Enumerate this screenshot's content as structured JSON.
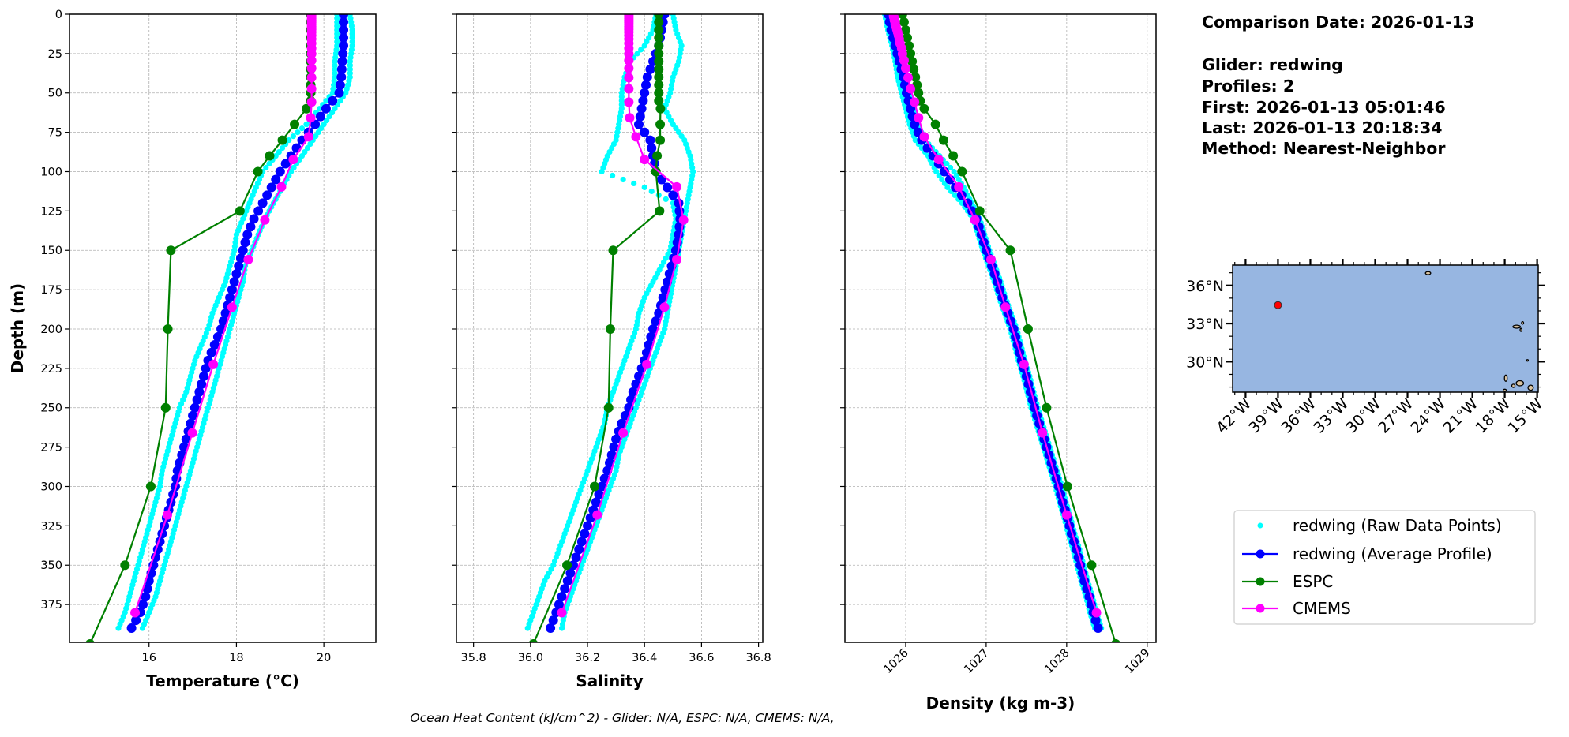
{
  "info": {
    "comparison_date": "Comparison Date: 2026-01-13",
    "glider": "Glider: redwing",
    "profiles": "Profiles: 2",
    "first": "First: 2026-01-13 05:01:46",
    "last": "Last: 2026-01-13 20:18:34",
    "method": "Method: Nearest-Neighbor"
  },
  "footer": "Ocean Heat Content (kJ/cm^2) - Glider: N/A,  ESPC: N/A,  CMEMS: N/A,",
  "legend": {
    "placement": "right",
    "items": [
      {
        "label": "redwing (Raw Data Points)",
        "color": "#00ffff",
        "style": "marker"
      },
      {
        "label": "redwing (Average Profile)",
        "color": "#0000ff",
        "style": "line-marker"
      },
      {
        "label": "ESPC",
        "color": "#008000",
        "style": "line-marker"
      },
      {
        "label": "CMEMS",
        "color": "#ff00ff",
        "style": "line-marker"
      }
    ]
  },
  "map": {
    "lon_range": [
      -43.2,
      -14.9
    ],
    "lat_range": [
      27.6,
      37.6
    ],
    "ocean_color": "#97b6e1",
    "land_color": "#d9c3a0",
    "marker_color": "#ff0000",
    "glider_position": {
      "lon": -39.0,
      "lat": 34.45
    },
    "lon_ticks": [
      {
        "value": -42,
        "label": "42°W"
      },
      {
        "value": -39,
        "label": "39°W"
      },
      {
        "value": -36,
        "label": "36°W"
      },
      {
        "value": -33,
        "label": "33°W"
      },
      {
        "value": -30,
        "label": "30°W"
      },
      {
        "value": -27,
        "label": "27°W"
      },
      {
        "value": -24,
        "label": "24°W"
      },
      {
        "value": -21,
        "label": "21°W"
      },
      {
        "value": -18,
        "label": "18°W"
      },
      {
        "value": -15,
        "label": "15°W"
      }
    ],
    "lat_ticks": [
      {
        "value": 36,
        "label": "36°N"
      },
      {
        "value": 33,
        "label": "33°N"
      },
      {
        "value": 30,
        "label": "30°N"
      }
    ],
    "islands": [
      {
        "lon": -25.1,
        "lat": 36.97,
        "rx": 0.25,
        "ry": 0.12
      },
      {
        "lon": -16.9,
        "lat": 32.75,
        "rx": 0.35,
        "ry": 0.12
      },
      {
        "lon": -16.35,
        "lat": 33.05,
        "rx": 0.1,
        "ry": 0.1
      },
      {
        "lon": -16.5,
        "lat": 32.5,
        "rx": 0.08,
        "ry": 0.12
      },
      {
        "lon": -15.9,
        "lat": 30.1,
        "rx": 0.08,
        "ry": 0.06
      },
      {
        "lon": -17.9,
        "lat": 28.7,
        "rx": 0.13,
        "ry": 0.25
      },
      {
        "lon": -17.2,
        "lat": 28.1,
        "rx": 0.15,
        "ry": 0.13
      },
      {
        "lon": -16.6,
        "lat": 28.3,
        "rx": 0.35,
        "ry": 0.2
      },
      {
        "lon": -15.6,
        "lat": 27.95,
        "rx": 0.25,
        "ry": 0.2
      },
      {
        "lon": -18.0,
        "lat": 27.75,
        "rx": 0.15,
        "ry": 0.08
      }
    ]
  },
  "chart_data": {
    "type": "line",
    "ylabel": "Depth (m)",
    "ylim": [
      0,
      399
    ],
    "y_inverted": true,
    "grid": true,
    "yticks": [
      0,
      25,
      50,
      75,
      100,
      125,
      150,
      175,
      200,
      225,
      250,
      275,
      300,
      325,
      350,
      375
    ],
    "glider_depths": [
      0,
      10,
      20,
      30,
      40,
      50,
      60,
      70,
      80,
      90,
      100,
      110,
      120,
      130,
      140,
      150,
      160,
      170,
      180,
      190,
      200,
      210,
      220,
      230,
      240,
      250,
      260,
      270,
      280,
      290,
      300,
      310,
      320,
      330,
      340,
      350,
      360,
      370,
      380,
      390
    ],
    "espc_depths": [
      0,
      5,
      10,
      15,
      20,
      25,
      30,
      35,
      40,
      45,
      50,
      55,
      60,
      70,
      80,
      90,
      100,
      125,
      150,
      200,
      250,
      300,
      350,
      400
    ],
    "cmems_depths": [
      0.5,
      1.5,
      2.6,
      3.8,
      5.1,
      6.4,
      7.9,
      9.6,
      11.4,
      13.5,
      15.8,
      18.5,
      21.6,
      25.2,
      29.4,
      34.4,
      40.3,
      47.4,
      55.8,
      65.8,
      77.9,
      92.3,
      109.7,
      130.7,
      155.9,
      186.1,
      222.5,
      266.0,
      318.1,
      380.2
    ],
    "panels": [
      {
        "id": "temperature",
        "xlabel": "Temperature (°C)",
        "xlim": [
          14.18,
          21.19
        ],
        "xticks": [
          {
            "value": 16,
            "label": "16"
          },
          {
            "value": 18,
            "label": "18"
          },
          {
            "value": 20,
            "label": "20"
          }
        ],
        "rotate_ticks": false,
        "show_yticklabels": true,
        "raw_a": [
          20.3,
          20.3,
          20.3,
          20.25,
          20.25,
          20.2,
          19.9,
          19.6,
          19.2,
          18.9,
          18.6,
          18.45,
          18.3,
          18.15,
          18.0,
          17.95,
          17.85,
          17.75,
          17.6,
          17.45,
          17.35,
          17.2,
          17.05,
          16.95,
          16.85,
          16.7,
          16.6,
          16.5,
          16.4,
          16.3,
          16.25,
          16.15,
          16.05,
          15.95,
          15.85,
          15.75,
          15.65,
          15.55,
          15.45,
          15.3
        ],
        "raw_b": [
          20.6,
          20.65,
          20.65,
          20.6,
          20.6,
          20.5,
          20.25,
          20.0,
          19.75,
          19.5,
          19.25,
          19.05,
          18.85,
          18.65,
          18.5,
          18.35,
          18.2,
          18.15,
          18.05,
          17.95,
          17.85,
          17.75,
          17.65,
          17.55,
          17.45,
          17.35,
          17.25,
          17.15,
          17.05,
          16.95,
          16.85,
          16.75,
          16.65,
          16.55,
          16.45,
          16.35,
          16.25,
          16.15,
          16.0,
          15.85
        ],
        "avg": [
          20.45,
          20.45,
          20.45,
          20.42,
          20.4,
          20.35,
          20.05,
          19.8,
          19.5,
          19.25,
          19.0,
          18.8,
          18.6,
          18.4,
          18.25,
          18.15,
          18.05,
          17.95,
          17.85,
          17.75,
          17.65,
          17.5,
          17.35,
          17.25,
          17.15,
          17.05,
          16.95,
          16.85,
          16.75,
          16.65,
          16.6,
          16.5,
          16.4,
          16.3,
          16.2,
          16.1,
          16.0,
          15.92,
          15.8,
          15.6
        ],
        "espc": [
          19.7,
          19.7,
          19.7,
          19.7,
          19.7,
          19.7,
          19.7,
          19.7,
          19.7,
          19.7,
          19.7,
          19.7,
          19.6,
          19.33,
          19.05,
          18.76,
          18.49,
          18.08,
          16.5,
          16.43,
          16.38,
          16.04,
          15.45,
          14.65
        ],
        "cmems": [
          19.72,
          19.72,
          19.72,
          19.72,
          19.72,
          19.72,
          19.72,
          19.72,
          19.72,
          19.72,
          19.72,
          19.72,
          19.72,
          19.72,
          19.72,
          19.72,
          19.72,
          19.72,
          19.72,
          19.7,
          19.65,
          19.3,
          19.03,
          18.65,
          18.27,
          17.9,
          17.47,
          16.99,
          16.42,
          15.68
        ]
      },
      {
        "id": "salinity",
        "xlabel": "Salinity",
        "xlim": [
          35.74,
          36.815
        ],
        "xticks": [
          {
            "value": 35.8,
            "label": "35.8"
          },
          {
            "value": 36.0,
            "label": "36.0"
          },
          {
            "value": 36.2,
            "label": "36.2"
          },
          {
            "value": 36.4,
            "label": "36.4"
          },
          {
            "value": 36.6,
            "label": "36.6"
          },
          {
            "value": 36.8,
            "label": "36.8"
          }
        ],
        "rotate_ticks": false,
        "show_yticklabels": false,
        "raw_a": [
          36.44,
          36.43,
          36.4,
          36.35,
          36.33,
          36.32,
          36.32,
          36.31,
          36.3,
          36.27,
          36.25,
          36.4,
          36.5,
          36.51,
          36.5,
          36.49,
          36.46,
          36.43,
          36.4,
          36.38,
          36.37,
          36.35,
          36.33,
          36.31,
          36.29,
          36.27,
          36.26,
          36.24,
          36.22,
          36.2,
          36.18,
          36.16,
          36.14,
          36.12,
          36.1,
          36.08,
          36.05,
          36.03,
          36.01,
          35.99
        ],
        "raw_b": [
          36.5,
          36.51,
          36.53,
          36.52,
          36.5,
          36.49,
          36.47,
          36.5,
          36.54,
          36.56,
          36.57,
          36.56,
          36.55,
          36.54,
          36.53,
          36.52,
          36.51,
          36.5,
          36.49,
          36.48,
          36.47,
          36.45,
          36.43,
          36.41,
          36.39,
          36.37,
          36.35,
          36.33,
          36.31,
          36.3,
          36.28,
          36.26,
          36.24,
          36.22,
          36.2,
          36.18,
          36.16,
          36.14,
          36.12,
          36.11
        ],
        "avg": [
          36.47,
          36.46,
          36.45,
          36.43,
          36.41,
          36.4,
          36.39,
          36.38,
          36.42,
          36.43,
          36.44,
          36.48,
          36.52,
          36.525,
          36.52,
          36.51,
          36.495,
          36.48,
          36.465,
          36.45,
          36.43,
          36.415,
          36.4,
          36.38,
          36.36,
          36.345,
          36.32,
          36.3,
          36.285,
          36.27,
          36.25,
          36.23,
          36.21,
          36.19,
          36.17,
          36.15,
          36.13,
          36.11,
          36.09,
          36.07
        ],
        "espc": [
          36.45,
          36.45,
          36.45,
          36.45,
          36.45,
          36.45,
          36.45,
          36.45,
          36.45,
          36.45,
          36.45,
          36.45,
          36.456,
          36.455,
          36.455,
          36.444,
          36.44,
          36.453,
          36.29,
          36.28,
          36.274,
          36.225,
          36.128,
          36.01
        ],
        "cmems": [
          36.345,
          36.345,
          36.345,
          36.345,
          36.345,
          36.345,
          36.345,
          36.345,
          36.345,
          36.345,
          36.345,
          36.345,
          36.345,
          36.345,
          36.345,
          36.345,
          36.345,
          36.345,
          36.345,
          36.348,
          36.37,
          36.4,
          36.513,
          36.537,
          36.513,
          36.47,
          36.408,
          36.325,
          36.234,
          36.11
        ]
      },
      {
        "id": "density",
        "xlabel": "Density (kg m-3)",
        "xlim": [
          1025.245,
          1029.11
        ],
        "xticks": [
          {
            "value": 1026,
            "label": "1026"
          },
          {
            "value": 1027,
            "label": "1027"
          },
          {
            "value": 1028,
            "label": "1028"
          },
          {
            "value": 1029,
            "label": "1029"
          }
        ],
        "rotate_ticks": true,
        "show_yticklabels": false,
        "raw_a": [
          1025.74,
          1025.78,
          1025.83,
          1025.87,
          1025.9,
          1025.95,
          1026.0,
          1026.05,
          1026.12,
          1026.28,
          1026.38,
          1026.52,
          1026.7,
          1026.84,
          1026.9,
          1026.96,
          1027.03,
          1027.1,
          1027.16,
          1027.23,
          1027.3,
          1027.35,
          1027.4,
          1027.46,
          1027.51,
          1027.56,
          1027.62,
          1027.68,
          1027.74,
          1027.8,
          1027.86,
          1027.91,
          1027.97,
          1028.02,
          1028.08,
          1028.13,
          1028.18,
          1028.24,
          1028.29,
          1028.35
        ],
        "raw_b": [
          1025.82,
          1025.86,
          1025.91,
          1025.96,
          1026.01,
          1026.05,
          1026.1,
          1026.15,
          1026.24,
          1026.42,
          1026.6,
          1026.72,
          1026.82,
          1026.92,
          1026.98,
          1027.04,
          1027.11,
          1027.18,
          1027.24,
          1027.31,
          1027.38,
          1027.43,
          1027.48,
          1027.54,
          1027.59,
          1027.64,
          1027.7,
          1027.76,
          1027.82,
          1027.88,
          1027.94,
          1027.99,
          1028.05,
          1028.1,
          1028.16,
          1028.21,
          1028.26,
          1028.32,
          1028.37,
          1028.43
        ],
        "avg": [
          1025.78,
          1025.82,
          1025.87,
          1025.92,
          1025.97,
          1026.01,
          1026.06,
          1026.11,
          1026.2,
          1026.34,
          1026.48,
          1026.62,
          1026.77,
          1026.88,
          1026.94,
          1027.0,
          1027.07,
          1027.14,
          1027.2,
          1027.27,
          1027.34,
          1027.39,
          1027.44,
          1027.5,
          1027.55,
          1027.6,
          1027.66,
          1027.72,
          1027.78,
          1027.84,
          1027.9,
          1027.95,
          1028.01,
          1028.06,
          1028.12,
          1028.17,
          1028.22,
          1028.28,
          1028.33,
          1028.39
        ],
        "espc": [
          1025.96,
          1025.98,
          1026.0,
          1026.02,
          1026.04,
          1026.06,
          1026.08,
          1026.1,
          1026.12,
          1026.14,
          1026.16,
          1026.18,
          1026.23,
          1026.37,
          1026.47,
          1026.59,
          1026.7,
          1026.92,
          1027.3,
          1027.52,
          1027.75,
          1028.01,
          1028.31,
          1028.61
        ],
        "cmems": [
          1025.85,
          1025.85,
          1025.86,
          1025.86,
          1025.87,
          1025.87,
          1025.88,
          1025.89,
          1025.9,
          1025.91,
          1025.92,
          1025.93,
          1025.95,
          1025.96,
          1025.98,
          1026.0,
          1026.03,
          1026.06,
          1026.11,
          1026.16,
          1026.23,
          1026.41,
          1026.66,
          1026.86,
          1027.06,
          1027.24,
          1027.47,
          1027.7,
          1028.0,
          1028.37
        ]
      }
    ]
  }
}
